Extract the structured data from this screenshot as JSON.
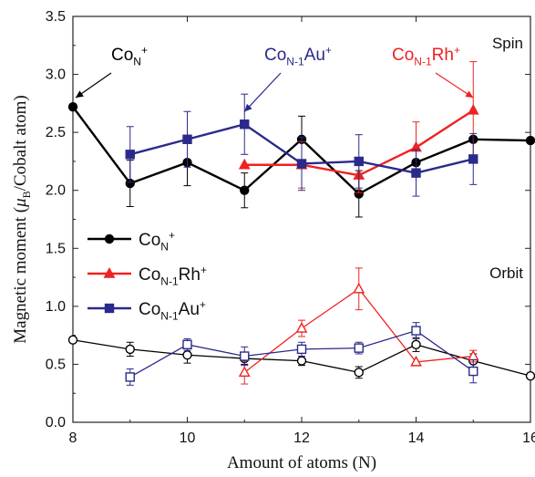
{
  "chart_data": {
    "type": "line",
    "xlabel": "Amount of atoms (N)",
    "ylabel_parts": {
      "main": "Magnetic moment (",
      "mu": "μ",
      "sub": "B",
      "tail": "/Cobalt atom)"
    },
    "xlim": [
      8,
      16
    ],
    "ylim": [
      0.0,
      3.5
    ],
    "xticks": [
      8,
      10,
      12,
      14,
      16
    ],
    "xtick_labels": [
      "8",
      "10",
      "12",
      "14",
      "16"
    ],
    "yticks": [
      0.0,
      0.5,
      1.0,
      1.5,
      2.0,
      2.5,
      3.0,
      3.5
    ],
    "ytick_labels": [
      "0.0",
      "0.5",
      "1.0",
      "1.5",
      "2.0",
      "2.5",
      "3.0",
      "3.5"
    ],
    "grid": false,
    "legend_position": "center-left",
    "region_labels": {
      "spin": "Spin",
      "orbit": "Orbit"
    },
    "series": [
      {
        "name": "Co_N^+",
        "label": {
          "base": "Co",
          "sub": "N",
          "sup": "+"
        },
        "color": "#000000",
        "marker": "circle",
        "spin": {
          "x": [
            8,
            9,
            10,
            11,
            12,
            13,
            14,
            15,
            16
          ],
          "y": [
            2.72,
            2.06,
            2.24,
            2.0,
            2.44,
            1.97,
            2.24,
            2.44,
            2.43
          ],
          "err": [
            0.0,
            0.2,
            0.2,
            0.15,
            0.2,
            0.2,
            0.0,
            0.0,
            0.0
          ]
        },
        "orbit": {
          "x": [
            8,
            9,
            10,
            11,
            12,
            13,
            14,
            15,
            16
          ],
          "y": [
            0.71,
            0.63,
            0.58,
            0.55,
            0.53,
            0.43,
            0.67,
            0.53,
            0.4
          ],
          "err": [
            0.0,
            0.06,
            0.07,
            0.05,
            0.04,
            0.05,
            0.06,
            0.06,
            0.0
          ]
        }
      },
      {
        "name": "Co_N-1Rh^+",
        "label": {
          "base": "Co",
          "sub": "N-1",
          "mid": "Rh",
          "sup": "+"
        },
        "color": "#ee2222",
        "marker": "triangle",
        "spin": {
          "x": [
            11,
            12,
            13,
            14,
            15
          ],
          "y": [
            2.22,
            2.22,
            2.13,
            2.37,
            2.69
          ],
          "err": [
            0.0,
            0.2,
            0.15,
            0.22,
            0.42
          ]
        },
        "orbit": {
          "x": [
            11,
            12,
            13,
            14,
            15
          ],
          "y": [
            0.43,
            0.81,
            1.15,
            0.52,
            0.57
          ],
          "err": [
            0.1,
            0.07,
            0.18,
            0.0,
            0.05
          ]
        }
      },
      {
        "name": "Co_N-1Au^+",
        "label": {
          "base": "Co",
          "sub": "N-1",
          "mid": "Au",
          "sup": "+"
        },
        "color": "#2a2a8a",
        "marker": "square",
        "spin": {
          "x": [
            9,
            10,
            11,
            12,
            13,
            14,
            15
          ],
          "y": [
            2.31,
            2.44,
            2.57,
            2.23,
            2.25,
            2.15,
            2.27
          ],
          "err": [
            0.24,
            0.24,
            0.26,
            0.23,
            0.23,
            0.2,
            0.22
          ]
        },
        "orbit": {
          "x": [
            9,
            10,
            11,
            12,
            13,
            14,
            15
          ],
          "y": [
            0.39,
            0.67,
            0.57,
            0.63,
            0.64,
            0.79,
            0.44
          ],
          "err": [
            0.07,
            0.05,
            0.08,
            0.06,
            0.05,
            0.07,
            0.1
          ]
        }
      }
    ],
    "annotations": [
      {
        "series": 0,
        "text": {
          "base": "Co",
          "sub": "N",
          "sup": "+"
        },
        "color": "#000000",
        "points_to": [
          8,
          2.72
        ]
      },
      {
        "series": 2,
        "text": {
          "base": "Co",
          "sub": "N-1",
          "mid": "Au",
          "sup": "+"
        },
        "color": "#2a2a8a",
        "points_to": [
          11,
          2.6
        ]
      },
      {
        "series": 1,
        "text": {
          "base": "Co",
          "sub": "N-1",
          "mid": "Rh",
          "sup": "+"
        },
        "color": "#ee2222",
        "points_to": [
          15,
          2.72
        ]
      }
    ]
  }
}
